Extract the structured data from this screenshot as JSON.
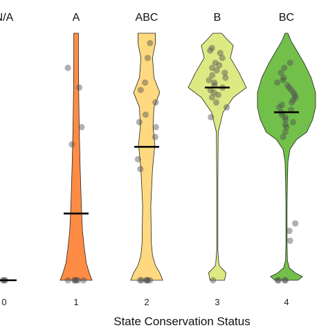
{
  "chart_data": {
    "type": "violin",
    "title": "",
    "xlabel": "State Conservation Status",
    "ylabel": "",
    "categories": [
      "0",
      "1",
      "2",
      "3",
      "4"
    ],
    "group_labels": [
      "N/A",
      "A",
      "ABC",
      "B",
      "BC"
    ],
    "colors": [
      "#ff7f3f",
      "#ff8c45",
      "#ffd980",
      "#ddea84",
      "#72c04a"
    ],
    "y_range": [
      0,
      1
    ],
    "medians": [
      0.0,
      0.27,
      0.54,
      0.78,
      0.68
    ],
    "violins": [
      {
        "category": "0",
        "profile": []
      },
      {
        "category": "1",
        "profile": [
          [
            0,
            0.55
          ],
          [
            0.03,
            0.45
          ],
          [
            0.07,
            0.35
          ],
          [
            0.13,
            0.28
          ],
          [
            0.2,
            0.22
          ],
          [
            0.3,
            0.18
          ],
          [
            0.45,
            0.14
          ],
          [
            0.6,
            0.11
          ],
          [
            0.75,
            0.09
          ],
          [
            0.9,
            0.08
          ],
          [
            1.0,
            0.08
          ]
        ]
      },
      {
        "category": "2",
        "profile": [
          [
            0,
            0.55
          ],
          [
            0.03,
            0.45
          ],
          [
            0.06,
            0.3
          ],
          [
            0.1,
            0.2
          ],
          [
            0.15,
            0.16
          ],
          [
            0.3,
            0.14
          ],
          [
            0.45,
            0.2
          ],
          [
            0.55,
            0.28
          ],
          [
            0.62,
            0.22
          ],
          [
            0.7,
            0.25
          ],
          [
            0.76,
            0.45
          ],
          [
            0.82,
            0.25
          ],
          [
            0.9,
            0.2
          ],
          [
            0.96,
            0.3
          ],
          [
            1.0,
            0.3
          ]
        ]
      },
      {
        "category": "3",
        "profile": [
          [
            0,
            0.25
          ],
          [
            0.03,
            0.3
          ],
          [
            0.06,
            0.06
          ],
          [
            0.12,
            0.02
          ],
          [
            0.4,
            0.02
          ],
          [
            0.6,
            0.03
          ],
          [
            0.68,
            0.2
          ],
          [
            0.74,
            0.55
          ],
          [
            0.78,
            1.0
          ],
          [
            0.84,
            0.75
          ],
          [
            0.9,
            0.45
          ],
          [
            0.95,
            0.55
          ],
          [
            0.98,
            0.3
          ],
          [
            1.0,
            0.15
          ]
        ]
      },
      {
        "category": "4",
        "profile": [
          [
            0,
            0.4
          ],
          [
            0.015,
            0.55
          ],
          [
            0.03,
            0.3
          ],
          [
            0.05,
            0.1
          ],
          [
            0.08,
            0.03
          ],
          [
            0.15,
            0.02
          ],
          [
            0.3,
            0.02
          ],
          [
            0.4,
            0.03
          ],
          [
            0.48,
            0.05
          ],
          [
            0.53,
            0.12
          ],
          [
            0.57,
            0.35
          ],
          [
            0.6,
            0.7
          ],
          [
            0.65,
            0.9
          ],
          [
            0.7,
            1.0
          ],
          [
            0.76,
            1.0
          ],
          [
            0.82,
            0.85
          ],
          [
            0.88,
            0.6
          ],
          [
            0.93,
            0.35
          ],
          [
            0.97,
            0.15
          ],
          [
            1.0,
            0.05
          ]
        ]
      }
    ],
    "points": [
      {
        "category": "0",
        "values": [
          0,
          0,
          0
        ]
      },
      {
        "category": "1",
        "values": [
          0,
          0,
          0,
          0,
          0,
          0,
          0.55,
          0.62,
          0.78,
          0.86
        ]
      },
      {
        "category": "2",
        "values": [
          0,
          0,
          0,
          0,
          0,
          0,
          0.45,
          0.49,
          0.58,
          0.62,
          0.64,
          0.67,
          0.72,
          0.77,
          0.8,
          0.9,
          0.96
        ]
      },
      {
        "category": "3",
        "values": [
          0,
          0.66,
          0.7,
          0.72,
          0.74,
          0.75,
          0.76,
          0.77,
          0.78,
          0.79,
          0.8,
          0.81,
          0.82,
          0.83,
          0.84,
          0.85,
          0.86,
          0.87,
          0.88,
          0.9,
          0.92,
          0.93,
          0.94
        ]
      },
      {
        "category": "4",
        "values": [
          0,
          0,
          0,
          0,
          0.16,
          0.2,
          0.23,
          0.58,
          0.6,
          0.62,
          0.63,
          0.64,
          0.65,
          0.66,
          0.67,
          0.68,
          0.69,
          0.7,
          0.71,
          0.72,
          0.73,
          0.74,
          0.75,
          0.76,
          0.77,
          0.78,
          0.79,
          0.8,
          0.81,
          0.82,
          0.84,
          0.86,
          0.88
        ]
      }
    ],
    "legend": "none",
    "grid": false
  }
}
